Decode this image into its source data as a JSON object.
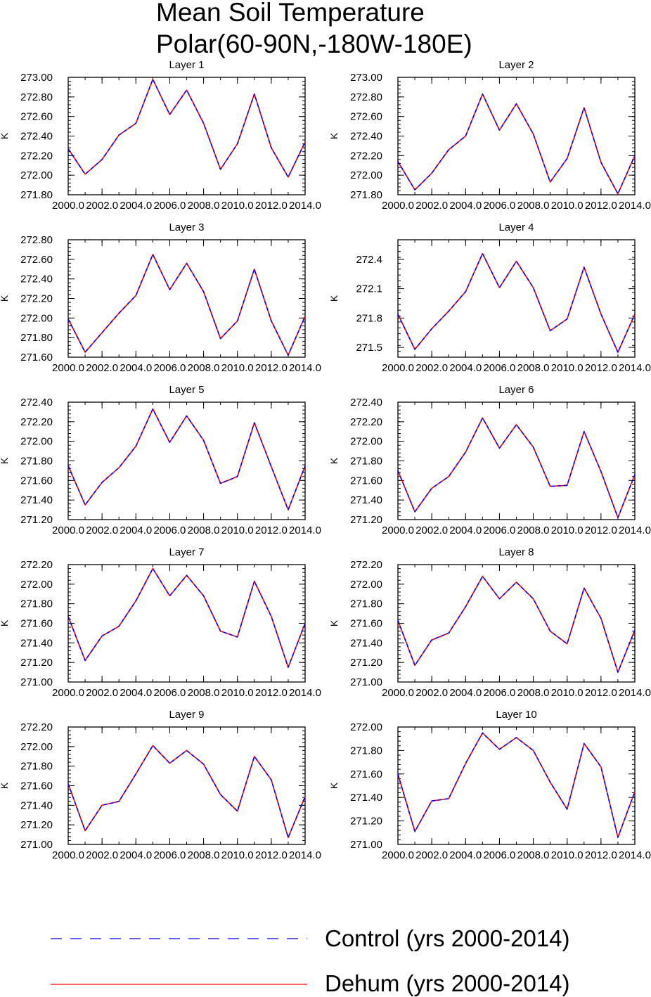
{
  "figure": {
    "title_line1": "Mean Soil Temperature",
    "title_line2": "Polar(60-90N,-180W-180E)"
  },
  "legend": {
    "control_label": "Control (yrs 2000-2014)",
    "dehum_label": "Dehum (yrs 2000-2014)",
    "control_color": "#0000ff",
    "dehum_color": "#ff0000"
  },
  "chart_data": [
    {
      "type": "line",
      "title": "Layer 1",
      "ylabel": "K",
      "x": [
        2000,
        2001,
        2002,
        2003,
        2004,
        2005,
        2006,
        2007,
        2008,
        2009,
        2010,
        2011,
        2012,
        2013,
        2014
      ],
      "xlim": [
        2000,
        2014
      ],
      "xticks": [
        2000,
        2002,
        2004,
        2006,
        2008,
        2010,
        2012,
        2014
      ],
      "xtick_labels": [
        "2000.0",
        "2002.0",
        "2004.0",
        "2006.0",
        "2008.0",
        "2010.0",
        "2012.0",
        "2014.0"
      ],
      "ylim": [
        271.8,
        273.0
      ],
      "yticks": [
        271.8,
        272.0,
        272.2,
        272.4,
        272.6,
        272.8,
        273.0
      ],
      "ytick_labels": [
        "271.80",
        "272.00",
        "272.20",
        "272.40",
        "272.60",
        "272.80",
        "273.00"
      ],
      "series": [
        {
          "name": "Control (yrs 2000-2014)",
          "values": [
            272.27,
            272.01,
            272.16,
            272.41,
            272.53,
            272.98,
            272.62,
            272.87,
            272.53,
            272.06,
            272.32,
            272.83,
            272.28,
            271.98,
            272.34
          ]
        },
        {
          "name": "Dehum (yrs 2000-2014)",
          "values": [
            272.27,
            272.01,
            272.16,
            272.41,
            272.53,
            272.98,
            272.62,
            272.87,
            272.53,
            272.06,
            272.32,
            272.83,
            272.28,
            271.98,
            272.34
          ]
        }
      ]
    },
    {
      "type": "line",
      "title": "Layer 2",
      "ylabel": "K",
      "x": [
        2000,
        2001,
        2002,
        2003,
        2004,
        2005,
        2006,
        2007,
        2008,
        2009,
        2010,
        2011,
        2012,
        2013,
        2014
      ],
      "xlim": [
        2000,
        2014
      ],
      "xticks": [
        2000,
        2002,
        2004,
        2006,
        2008,
        2010,
        2012,
        2014
      ],
      "xtick_labels": [
        "2000.0",
        "2002.0",
        "2004.0",
        "2006.0",
        "2008.0",
        "2010.0",
        "2012.0",
        "2014.0"
      ],
      "ylim": [
        271.8,
        273.0
      ],
      "yticks": [
        271.8,
        272.0,
        272.2,
        272.4,
        272.6,
        272.8,
        273.0
      ],
      "ytick_labels": [
        "271.80",
        "272.00",
        "272.20",
        "272.40",
        "272.60",
        "272.80",
        "273.00"
      ],
      "series": [
        {
          "name": "Control (yrs 2000-2014)",
          "values": [
            272.14,
            271.85,
            272.02,
            272.26,
            272.4,
            272.83,
            272.46,
            272.73,
            272.42,
            271.93,
            272.17,
            272.69,
            272.13,
            271.81,
            272.2
          ]
        },
        {
          "name": "Dehum (yrs 2000-2014)",
          "values": [
            272.14,
            271.85,
            272.02,
            272.26,
            272.4,
            272.83,
            272.46,
            272.73,
            272.42,
            271.93,
            272.17,
            272.69,
            272.13,
            271.81,
            272.2
          ]
        }
      ]
    },
    {
      "type": "line",
      "title": "Layer 3",
      "ylabel": "K",
      "x": [
        2000,
        2001,
        2002,
        2003,
        2004,
        2005,
        2006,
        2007,
        2008,
        2009,
        2010,
        2011,
        2012,
        2013,
        2014
      ],
      "xlim": [
        2000,
        2014
      ],
      "xticks": [
        2000,
        2002,
        2004,
        2006,
        2008,
        2010,
        2012,
        2014
      ],
      "xtick_labels": [
        "2000.0",
        "2002.0",
        "2004.0",
        "2006.0",
        "2008.0",
        "2010.0",
        "2012.0",
        "2014.0"
      ],
      "ylim": [
        271.6,
        272.8
      ],
      "yticks": [
        271.6,
        271.8,
        272.0,
        272.2,
        272.4,
        272.6,
        272.8
      ],
      "ytick_labels": [
        "271.60",
        "271.80",
        "272.00",
        "272.20",
        "272.40",
        "272.60",
        "272.80"
      ],
      "series": [
        {
          "name": "Control (yrs 2000-2014)",
          "values": [
            271.99,
            271.65,
            271.85,
            272.05,
            272.23,
            272.65,
            272.29,
            272.56,
            272.27,
            271.79,
            271.97,
            272.5,
            271.97,
            271.62,
            272.02
          ]
        },
        {
          "name": "Dehum (yrs 2000-2014)",
          "values": [
            271.99,
            271.65,
            271.85,
            272.05,
            272.23,
            272.65,
            272.29,
            272.56,
            272.27,
            271.79,
            271.97,
            272.5,
            271.97,
            271.62,
            272.02
          ]
        }
      ]
    },
    {
      "type": "line",
      "title": "Layer 4",
      "ylabel": "K",
      "x": [
        2000,
        2001,
        2002,
        2003,
        2004,
        2005,
        2006,
        2007,
        2008,
        2009,
        2010,
        2011,
        2012,
        2013,
        2014
      ],
      "xlim": [
        2000,
        2014
      ],
      "xticks": [
        2000,
        2002,
        2004,
        2006,
        2008,
        2010,
        2012,
        2014
      ],
      "xtick_labels": [
        "2000.0",
        "2002.0",
        "2004.0",
        "2006.0",
        "2008.0",
        "2010.0",
        "2012.0",
        "2014.0"
      ],
      "ylim": [
        271.4,
        272.6
      ],
      "yticks": [
        271.5,
        271.8,
        272.1,
        272.4
      ],
      "ytick_labels": [
        "271.5",
        "271.8",
        "272.1",
        "272.4"
      ],
      "series": [
        {
          "name": "Control (yrs 2000-2014)",
          "values": [
            271.84,
            271.48,
            271.69,
            271.87,
            272.07,
            272.46,
            272.11,
            272.38,
            272.11,
            271.67,
            271.79,
            272.32,
            271.84,
            271.45,
            271.84
          ]
        },
        {
          "name": "Dehum (yrs 2000-2014)",
          "values": [
            271.84,
            271.48,
            271.69,
            271.87,
            272.07,
            272.46,
            272.11,
            272.38,
            272.11,
            271.67,
            271.79,
            272.32,
            271.84,
            271.45,
            271.84
          ]
        }
      ]
    },
    {
      "type": "line",
      "title": "Layer 5",
      "ylabel": "K",
      "x": [
        2000,
        2001,
        2002,
        2003,
        2004,
        2005,
        2006,
        2007,
        2008,
        2009,
        2010,
        2011,
        2012,
        2013,
        2014
      ],
      "xlim": [
        2000,
        2014
      ],
      "xticks": [
        2000,
        2002,
        2004,
        2006,
        2008,
        2010,
        2012,
        2014
      ],
      "xtick_labels": [
        "2000.0",
        "2002.0",
        "2004.0",
        "2006.0",
        "2008.0",
        "2010.0",
        "2012.0",
        "2014.0"
      ],
      "ylim": [
        271.2,
        272.4
      ],
      "yticks": [
        271.2,
        271.4,
        271.6,
        271.8,
        272.0,
        272.2,
        272.4
      ],
      "ytick_labels": [
        "271.20",
        "271.40",
        "271.60",
        "271.80",
        "272.00",
        "272.20",
        "272.40"
      ],
      "series": [
        {
          "name": "Control (yrs 2000-2014)",
          "values": [
            271.75,
            271.35,
            271.58,
            271.73,
            271.95,
            272.33,
            271.99,
            272.26,
            272.01,
            271.57,
            271.64,
            272.19,
            271.74,
            271.3,
            271.75
          ]
        },
        {
          "name": "Dehum (yrs 2000-2014)",
          "values": [
            271.75,
            271.35,
            271.58,
            271.73,
            271.95,
            272.33,
            271.99,
            272.26,
            272.01,
            271.57,
            271.64,
            272.19,
            271.74,
            271.3,
            271.75
          ]
        }
      ]
    },
    {
      "type": "line",
      "title": "Layer 6",
      "ylabel": "K",
      "x": [
        2000,
        2001,
        2002,
        2003,
        2004,
        2005,
        2006,
        2007,
        2008,
        2009,
        2010,
        2011,
        2012,
        2013,
        2014
      ],
      "xlim": [
        2000,
        2014
      ],
      "xticks": [
        2000,
        2002,
        2004,
        2006,
        2008,
        2010,
        2012,
        2014
      ],
      "xtick_labels": [
        "2000.0",
        "2002.0",
        "2004.0",
        "2006.0",
        "2008.0",
        "2010.0",
        "2012.0",
        "2014.0"
      ],
      "ylim": [
        271.2,
        272.4
      ],
      "yticks": [
        271.2,
        271.4,
        271.6,
        271.8,
        272.0,
        272.2,
        272.4
      ],
      "ytick_labels": [
        "271.20",
        "271.40",
        "271.60",
        "271.80",
        "272.00",
        "272.20",
        "272.40"
      ],
      "series": [
        {
          "name": "Control (yrs 2000-2014)",
          "values": [
            271.7,
            271.28,
            271.52,
            271.64,
            271.89,
            272.24,
            271.93,
            272.17,
            271.94,
            271.54,
            271.55,
            272.1,
            271.69,
            271.22,
            271.66
          ]
        },
        {
          "name": "Dehum (yrs 2000-2014)",
          "values": [
            271.7,
            271.28,
            271.52,
            271.64,
            271.89,
            272.24,
            271.93,
            272.17,
            271.94,
            271.54,
            271.55,
            272.1,
            271.69,
            271.22,
            271.66
          ]
        }
      ]
    },
    {
      "type": "line",
      "title": "Layer 7",
      "ylabel": "K",
      "x": [
        2000,
        2001,
        2002,
        2003,
        2004,
        2005,
        2006,
        2007,
        2008,
        2009,
        2010,
        2011,
        2012,
        2013,
        2014
      ],
      "xlim": [
        2000,
        2014
      ],
      "xticks": [
        2000,
        2002,
        2004,
        2006,
        2008,
        2010,
        2012,
        2014
      ],
      "xtick_labels": [
        "2000.0",
        "2002.0",
        "2004.0",
        "2006.0",
        "2008.0",
        "2010.0",
        "2012.0",
        "2014.0"
      ],
      "ylim": [
        271.0,
        272.2
      ],
      "yticks": [
        271.0,
        271.2,
        271.4,
        271.6,
        271.8,
        272.0,
        272.2
      ],
      "ytick_labels": [
        "271.00",
        "271.20",
        "271.40",
        "271.60",
        "271.80",
        "272.00",
        "272.20"
      ],
      "series": [
        {
          "name": "Control (yrs 2000-2014)",
          "values": [
            271.67,
            271.22,
            271.47,
            271.57,
            271.83,
            272.16,
            271.88,
            272.09,
            271.88,
            271.52,
            271.46,
            272.03,
            271.67,
            271.15,
            271.6
          ]
        },
        {
          "name": "Dehum (yrs 2000-2014)",
          "values": [
            271.67,
            271.22,
            271.47,
            271.57,
            271.83,
            272.16,
            271.88,
            272.09,
            271.88,
            271.52,
            271.46,
            272.03,
            271.67,
            271.15,
            271.6
          ]
        }
      ]
    },
    {
      "type": "line",
      "title": "Layer 8",
      "ylabel": "K",
      "x": [
        2000,
        2001,
        2002,
        2003,
        2004,
        2005,
        2006,
        2007,
        2008,
        2009,
        2010,
        2011,
        2012,
        2013,
        2014
      ],
      "xlim": [
        2000,
        2014
      ],
      "xticks": [
        2000,
        2002,
        2004,
        2006,
        2008,
        2010,
        2012,
        2014
      ],
      "xtick_labels": [
        "2000.0",
        "2002.0",
        "2004.0",
        "2006.0",
        "2008.0",
        "2010.0",
        "2012.0",
        "2014.0"
      ],
      "ylim": [
        271.0,
        272.2
      ],
      "yticks": [
        271.0,
        271.2,
        271.4,
        271.6,
        271.8,
        272.0,
        272.2
      ],
      "ytick_labels": [
        "271.00",
        "271.20",
        "271.40",
        "271.60",
        "271.80",
        "272.00",
        "272.20"
      ],
      "series": [
        {
          "name": "Control (yrs 2000-2014)",
          "values": [
            271.63,
            271.17,
            271.43,
            271.5,
            271.77,
            272.08,
            271.85,
            272.02,
            271.85,
            271.52,
            271.39,
            271.96,
            271.65,
            271.1,
            271.53
          ]
        },
        {
          "name": "Dehum (yrs 2000-2014)",
          "values": [
            271.63,
            271.17,
            271.43,
            271.5,
            271.77,
            272.08,
            271.85,
            272.02,
            271.85,
            271.52,
            271.39,
            271.96,
            271.65,
            271.1,
            271.53
          ]
        }
      ]
    },
    {
      "type": "line",
      "title": "Layer 9",
      "ylabel": "K",
      "x": [
        2000,
        2001,
        2002,
        2003,
        2004,
        2005,
        2006,
        2007,
        2008,
        2009,
        2010,
        2011,
        2012,
        2013,
        2014
      ],
      "xlim": [
        2000,
        2014
      ],
      "xticks": [
        2000,
        2002,
        2004,
        2006,
        2008,
        2010,
        2012,
        2014
      ],
      "xtick_labels": [
        "2000.0",
        "2002.0",
        "2004.0",
        "2006.0",
        "2008.0",
        "2010.0",
        "2012.0",
        "2014.0"
      ],
      "ylim": [
        271.0,
        272.2
      ],
      "yticks": [
        271.0,
        271.2,
        271.4,
        271.6,
        271.8,
        272.0,
        272.2
      ],
      "ytick_labels": [
        "271.00",
        "271.20",
        "271.40",
        "271.60",
        "271.80",
        "272.00",
        "272.20"
      ],
      "series": [
        {
          "name": "Control (yrs 2000-2014)",
          "values": [
            271.62,
            271.14,
            271.4,
            271.44,
            271.72,
            272.01,
            271.83,
            271.96,
            271.82,
            271.51,
            271.34,
            271.9,
            271.66,
            271.07,
            271.49
          ]
        },
        {
          "name": "Dehum (yrs 2000-2014)",
          "values": [
            271.62,
            271.14,
            271.4,
            271.44,
            271.72,
            272.01,
            271.83,
            271.96,
            271.82,
            271.51,
            271.34,
            271.9,
            271.66,
            271.07,
            271.49
          ]
        }
      ]
    },
    {
      "type": "line",
      "title": "Layer 10",
      "ylabel": "K",
      "x": [
        2000,
        2001,
        2002,
        2003,
        2004,
        2005,
        2006,
        2007,
        2008,
        2009,
        2010,
        2011,
        2012,
        2013,
        2014
      ],
      "xlim": [
        2000,
        2014
      ],
      "xticks": [
        2000,
        2002,
        2004,
        2006,
        2008,
        2010,
        2012,
        2014
      ],
      "xtick_labels": [
        "2000.0",
        "2002.0",
        "2004.0",
        "2006.0",
        "2008.0",
        "2010.0",
        "2012.0",
        "2014.0"
      ],
      "ylim": [
        271.0,
        272.0
      ],
      "yticks": [
        271.0,
        271.2,
        271.4,
        271.6,
        271.8,
        272.0
      ],
      "ytick_labels": [
        "271.00",
        "271.20",
        "271.40",
        "271.60",
        "271.80",
        "272.00"
      ],
      "series": [
        {
          "name": "Control (yrs 2000-2014)",
          "values": [
            271.6,
            271.11,
            271.37,
            271.39,
            271.69,
            271.95,
            271.81,
            271.91,
            271.8,
            271.53,
            271.3,
            271.86,
            271.66,
            271.06,
            271.45
          ]
        },
        {
          "name": "Dehum (yrs 2000-2014)",
          "values": [
            271.6,
            271.11,
            271.37,
            271.39,
            271.69,
            271.95,
            271.81,
            271.91,
            271.8,
            271.53,
            271.3,
            271.86,
            271.66,
            271.06,
            271.45
          ]
        }
      ]
    }
  ]
}
